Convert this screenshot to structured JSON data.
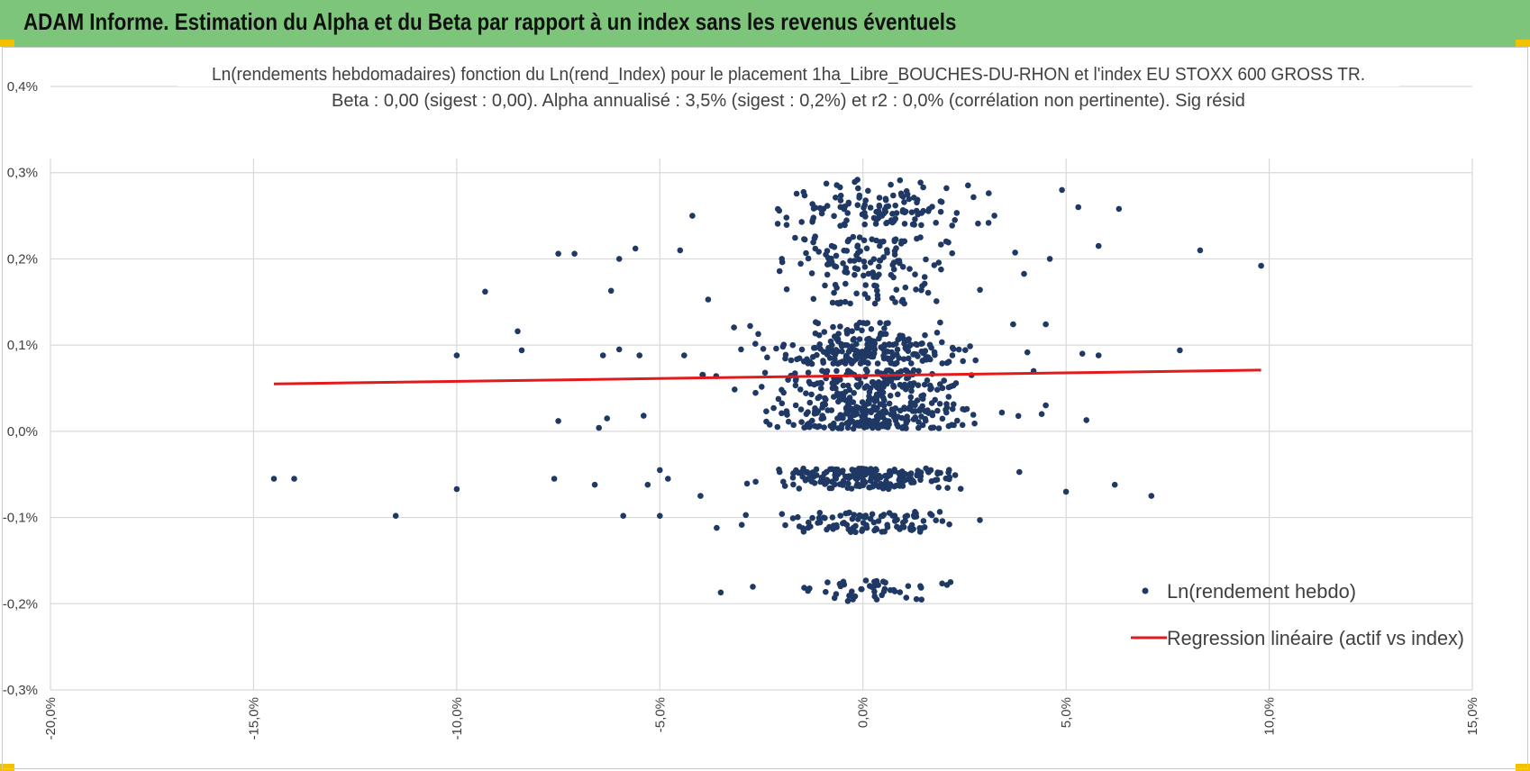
{
  "banner": {
    "title": "ADAM Informe. Estimation du Alpha et du Beta par rapport à un index sans les revenus éventuels",
    "color": "#7dc57a",
    "corner_color": "#f2c200"
  },
  "chart_data": {
    "type": "scatter",
    "title_lines": [
      "Ln(rendements hebdomadaires) fonction du Ln(rend_Index) pour le placement 1ha_Libre_BOUCHES-DU-RHON et l'index EU STOXX 600 GROSS TR.",
      "Beta : 0,00 (sigest : 0,00). Alpha annualisé : 3,5% (sigest : 0,2%) et r2 : 0,0% (corrélation non pertinente). Sig résid"
    ],
    "x_axis": {
      "min": -20,
      "max": 15,
      "ticks": [
        -20,
        -15,
        -10,
        -5,
        0,
        5,
        10,
        15
      ],
      "tick_labels": [
        "-20,0%",
        "-15,0%",
        "-10,0%",
        "-5,0%",
        "0,0%",
        "5,0%",
        "10,0%",
        "15,0%"
      ]
    },
    "y_axis": {
      "min": -0.3,
      "max": 0.4,
      "ticks": [
        -0.3,
        -0.2,
        -0.1,
        0.0,
        0.1,
        0.2,
        0.3,
        0.4
      ],
      "tick_labels": [
        "-0,3%",
        "-0,2%",
        "-0,1%",
        "0,0%",
        "0,1%",
        "0,2%",
        "0,3%",
        "0,4%"
      ]
    },
    "grid": true,
    "legend_position": "bottom-right",
    "series": [
      {
        "name": "Ln(rendement hebdo)",
        "kind": "scatter",
        "color": "#1f3864",
        "cluster": {
          "levels": [
            -0.185,
            -0.105,
            -0.055,
            0.015,
            0.035,
            0.06,
            0.09,
            0.115,
            0.16,
            0.19,
            0.215,
            0.25,
            0.265,
            0.28
          ],
          "weights": [
            40,
            110,
            200,
            180,
            90,
            120,
            180,
            60,
            50,
            60,
            40,
            70,
            40,
            30
          ],
          "x_center": 0.2,
          "x_spread": 1.7,
          "y_jitter": 0.012,
          "count": 1270
        },
        "outliers": [
          [
            -14.5,
            -0.055
          ],
          [
            -14.0,
            -0.055
          ],
          [
            -11.5,
            -0.098
          ],
          [
            -10.0,
            0.088
          ],
          [
            -10.0,
            -0.067
          ],
          [
            -9.3,
            0.162
          ],
          [
            -8.5,
            0.116
          ],
          [
            -8.4,
            0.094
          ],
          [
            -7.5,
            0.206
          ],
          [
            -7.1,
            0.206
          ],
          [
            -7.6,
            -0.055
          ],
          [
            -7.5,
            0.012
          ],
          [
            -6.6,
            -0.062
          ],
          [
            -6.5,
            0.004
          ],
          [
            -6.4,
            0.088
          ],
          [
            -6.2,
            0.163
          ],
          [
            -6.0,
            0.2
          ],
          [
            -5.6,
            0.212
          ],
          [
            -6.0,
            0.095
          ],
          [
            -5.9,
            -0.098
          ],
          [
            -5.5,
            0.088
          ],
          [
            -5.4,
            0.018
          ],
          [
            -5.3,
            -0.062
          ],
          [
            -5.0,
            -0.098
          ],
          [
            -5.0,
            -0.045
          ],
          [
            -4.8,
            -0.055
          ],
          [
            -4.5,
            0.21
          ],
          [
            -4.4,
            0.088
          ],
          [
            -4.2,
            0.25
          ],
          [
            -4.0,
            -0.075
          ],
          [
            -3.6,
            -0.112
          ],
          [
            -3.5,
            -0.187
          ],
          [
            -6.3,
            0.015
          ],
          [
            4.6,
            0.2
          ],
          [
            4.9,
            0.28
          ],
          [
            5.0,
            -0.07
          ],
          [
            5.3,
            0.26
          ],
          [
            5.4,
            0.09
          ],
          [
            5.5,
            0.013
          ],
          [
            5.8,
            0.215
          ],
          [
            5.8,
            0.088
          ],
          [
            6.2,
            -0.062
          ],
          [
            6.3,
            0.258
          ],
          [
            7.1,
            -0.075
          ],
          [
            7.8,
            0.094
          ],
          [
            8.3,
            0.21
          ],
          [
            9.8,
            0.192
          ],
          [
            4.4,
            0.02
          ],
          [
            4.2,
            0.07
          ],
          [
            4.5,
            0.03
          ]
        ]
      },
      {
        "name": "Regression linéaire (actif vs index)",
        "kind": "line",
        "color": "#e31a1c",
        "points": [
          [
            -14.5,
            0.055
          ],
          [
            9.8,
            0.071
          ]
        ]
      }
    ]
  }
}
